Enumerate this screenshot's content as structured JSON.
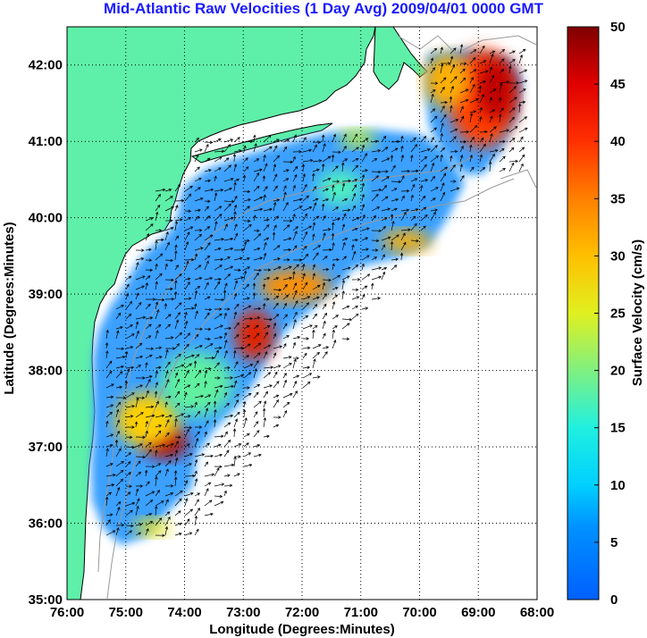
{
  "title": "Mid-Atlantic Raw Velocities (1 Day Avg) 2009/04/01 0000 GMT",
  "map": {
    "xlabel": "Longitude (Degrees:Minutes)",
    "ylabel": "Latitude (Degrees:Minutes)",
    "lon_range": [
      -76,
      -68
    ],
    "lat_range": [
      35,
      42.5
    ],
    "lon_ticks": [
      "76:00",
      "75:00",
      "74:00",
      "73:00",
      "72:00",
      "71:00",
      "70:00",
      "69:00",
      "68:00"
    ],
    "lat_ticks": [
      "35:00",
      "36:00",
      "37:00",
      "38:00",
      "39:00",
      "40:00",
      "41:00",
      "42:00"
    ],
    "grid": "dotted",
    "land_color": "#5ef0a8",
    "coast_contour_color": "#9a9a9a"
  },
  "colorbar": {
    "label": "Surface Velocity (cm/s)",
    "min": 0,
    "max": 50,
    "ticks": [
      "0",
      "5",
      "10",
      "15",
      "20",
      "25",
      "30",
      "35",
      "40",
      "45",
      "50"
    ],
    "colormap": "jet"
  }
}
